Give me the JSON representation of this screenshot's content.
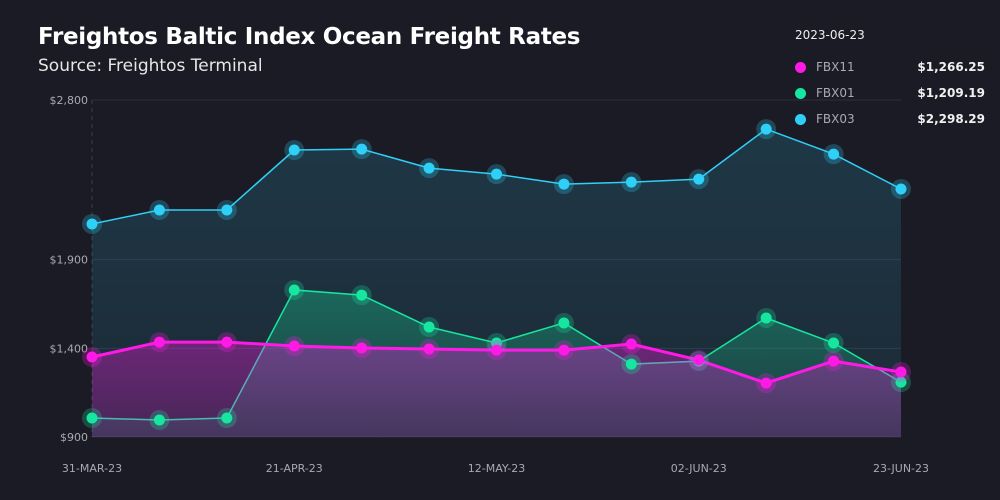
{
  "header": {
    "title": "Freightos Baltic Index Ocean Freight Rates",
    "subtitle": "Source: Freightos Terminal"
  },
  "legend": {
    "date": "2023-06-23",
    "items": [
      {
        "name": "FBX11",
        "value": "$1,266.25",
        "color": "#ff19e6"
      },
      {
        "name": "FBX01",
        "value": "$1,209.19",
        "color": "#16e7a0"
      },
      {
        "name": "FBX03",
        "value": "$2,298.29",
        "color": "#2fd0f7"
      }
    ]
  },
  "chart_data": {
    "type": "line",
    "title": "Freightos Baltic Index Ocean Freight Rates",
    "x": [
      "31-MAR-23",
      "07-APR-23",
      "14-APR-23",
      "21-APR-23",
      "28-APR-23",
      "05-MAY-23",
      "12-MAY-23",
      "19-MAY-23",
      "26-MAY-23",
      "02-JUN-23",
      "09-JUN-23",
      "16-JUN-23",
      "23-JUN-23"
    ],
    "x_tick_labels": [
      "31-MAR-23",
      "21-APR-23",
      "12-MAY-23",
      "02-JUN-23",
      "23-JUN-23"
    ],
    "y_ticks": [
      {
        "value": 900,
        "label": "$900"
      },
      {
        "value": 1400,
        "label": "$1,400"
      },
      {
        "value": 1900,
        "label": "$1,900"
      },
      {
        "value": 2800,
        "label": "$2,800"
      }
    ],
    "ylim": [
      900,
      2800
    ],
    "grid": true,
    "legend_position": "top-right",
    "series": [
      {
        "name": "FBX03",
        "color": "#2fd0f7",
        "values": [
          2101,
          2180,
          2180,
          2518,
          2523,
          2416,
          2382,
          2326,
          2337,
          2354,
          2636,
          2495,
          2298.29
        ]
      },
      {
        "name": "FBX01",
        "color": "#16e7a0",
        "values": [
          1007,
          996,
          1007,
          1729,
          1700,
          1520,
          1430,
          1543,
          1311,
          1328,
          1571,
          1430,
          1209.19
        ]
      },
      {
        "name": "FBX11",
        "color": "#ff19e6",
        "values": [
          1351,
          1435,
          1435,
          1413,
          1402,
          1396,
          1390,
          1390,
          1424,
          1334,
          1204,
          1328,
          1266.25
        ]
      }
    ]
  }
}
